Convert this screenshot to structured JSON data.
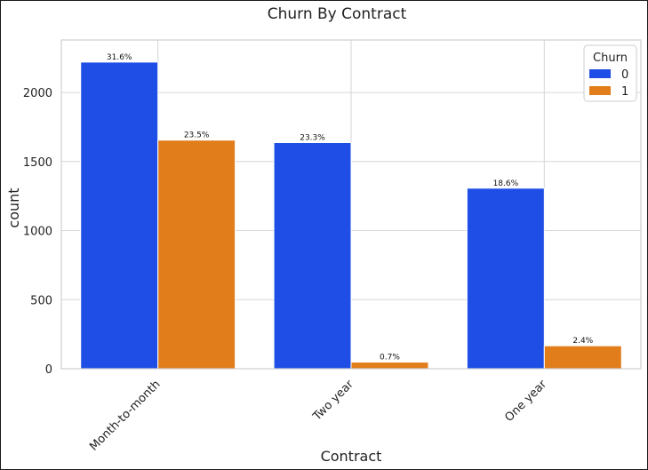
{
  "chart_data": {
    "type": "bar",
    "title": "Churn By Contract",
    "xlabel": "Contract",
    "ylabel": "count",
    "categories": [
      "Month-to-month",
      "Two year",
      "One year"
    ],
    "series": [
      {
        "name": "0",
        "color": "#1f4ee6",
        "values": [
          2220,
          1637,
          1307
        ],
        "labels": [
          "31.6%",
          "23.3%",
          "18.6%"
        ]
      },
      {
        "name": "1",
        "color": "#e27d1b",
        "values": [
          1655,
          48,
          166
        ],
        "labels": [
          "23.5%",
          "0.7%",
          "2.4%"
        ]
      }
    ],
    "ylim": [
      0,
      2380
    ],
    "yticks": [
      0,
      500,
      1000,
      1500,
      2000
    ],
    "grid": true,
    "legend": {
      "title": "Churn",
      "placement": "top-right"
    }
  }
}
